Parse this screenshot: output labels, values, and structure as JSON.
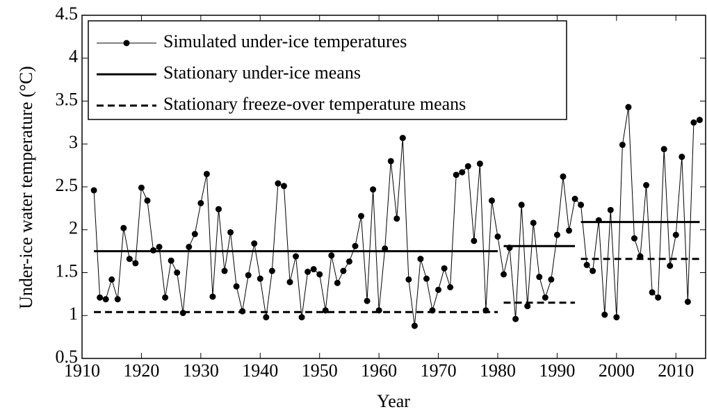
{
  "chart_data": {
    "type": "line",
    "xlabel": "Year",
    "ylabel": "Under-ice water temperature (°C)",
    "xlim": [
      1910,
      2015
    ],
    "ylim": [
      0.5,
      4.5
    ],
    "xticks": [
      1910,
      1920,
      1930,
      1940,
      1950,
      1960,
      1970,
      1980,
      1990,
      2000,
      2010
    ],
    "yticks": [
      0.5,
      1,
      1.5,
      2,
      2.5,
      3,
      3.5,
      4,
      4.5
    ],
    "legend": "upper left",
    "series": [
      {
        "name": "Simulated under-ice temperatures",
        "color": "#000000",
        "style": "line-marker",
        "x": [
          1912,
          1913,
          1914,
          1915,
          1916,
          1917,
          1918,
          1919,
          1920,
          1921,
          1922,
          1923,
          1924,
          1925,
          1926,
          1927,
          1928,
          1929,
          1930,
          1931,
          1932,
          1933,
          1934,
          1935,
          1936,
          1937,
          1938,
          1939,
          1940,
          1941,
          1942,
          1943,
          1944,
          1945,
          1946,
          1947,
          1948,
          1949,
          1950,
          1951,
          1952,
          1953,
          1954,
          1955,
          1956,
          1957,
          1958,
          1959,
          1960,
          1961,
          1962,
          1963,
          1964,
          1965,
          1966,
          1967,
          1968,
          1969,
          1970,
          1971,
          1972,
          1973,
          1974,
          1975,
          1976,
          1977,
          1978,
          1979,
          1980,
          1981,
          1982,
          1983,
          1984,
          1985,
          1986,
          1987,
          1988,
          1989,
          1990,
          1991,
          1992,
          1993,
          1994,
          1995,
          1996,
          1997,
          1998,
          1999,
          2000,
          2001,
          2002,
          2003,
          2004,
          2005,
          2006,
          2007,
          2008,
          2009,
          2010,
          2011,
          2012,
          2013,
          2014
        ],
        "values": [
          2.46,
          1.21,
          1.19,
          1.42,
          1.19,
          2.02,
          1.66,
          1.61,
          2.49,
          2.34,
          1.76,
          1.8,
          1.21,
          1.64,
          1.5,
          1.03,
          1.8,
          1.95,
          2.31,
          2.65,
          1.22,
          2.24,
          1.52,
          1.97,
          1.34,
          1.05,
          1.47,
          1.84,
          1.43,
          0.98,
          1.52,
          2.54,
          2.51,
          1.39,
          1.69,
          0.98,
          1.51,
          1.54,
          1.48,
          1.06,
          1.7,
          1.38,
          1.52,
          1.63,
          1.81,
          2.16,
          1.17,
          2.47,
          1.06,
          1.78,
          2.8,
          2.13,
          3.07,
          1.42,
          0.88,
          1.66,
          1.43,
          1.06,
          1.3,
          1.55,
          1.33,
          2.64,
          2.67,
          2.74,
          1.87,
          2.77,
          1.06,
          2.34,
          1.92,
          1.48,
          1.79,
          0.96,
          2.29,
          1.11,
          2.08,
          1.45,
          1.21,
          1.42,
          1.94,
          2.62,
          1.99,
          2.36,
          2.29,
          1.59,
          1.52,
          2.11,
          1.01,
          2.23,
          0.98,
          2.99,
          3.43,
          1.9,
          1.69,
          2.52,
          1.27,
          1.21,
          2.94,
          1.58,
          1.94,
          2.85,
          1.16,
          3.25,
          3.28
        ]
      },
      {
        "name": "Stationary under-ice means",
        "color": "#000000",
        "style": "solid",
        "segments": [
          {
            "x": [
              1912,
              1980
            ],
            "value": 1.75
          },
          {
            "x": [
              1981,
              1993
            ],
            "value": 1.81
          },
          {
            "x": [
              1994,
              2014
            ],
            "value": 2.09
          }
        ]
      },
      {
        "name": "Stationary freeze-over temperature means",
        "color": "#000000",
        "style": "dashed",
        "segments": [
          {
            "x": [
              1912,
              1980
            ],
            "value": 1.04
          },
          {
            "x": [
              1981,
              1993
            ],
            "value": 1.15
          },
          {
            "x": [
              1994,
              2014
            ],
            "value": 1.66
          }
        ]
      }
    ]
  }
}
